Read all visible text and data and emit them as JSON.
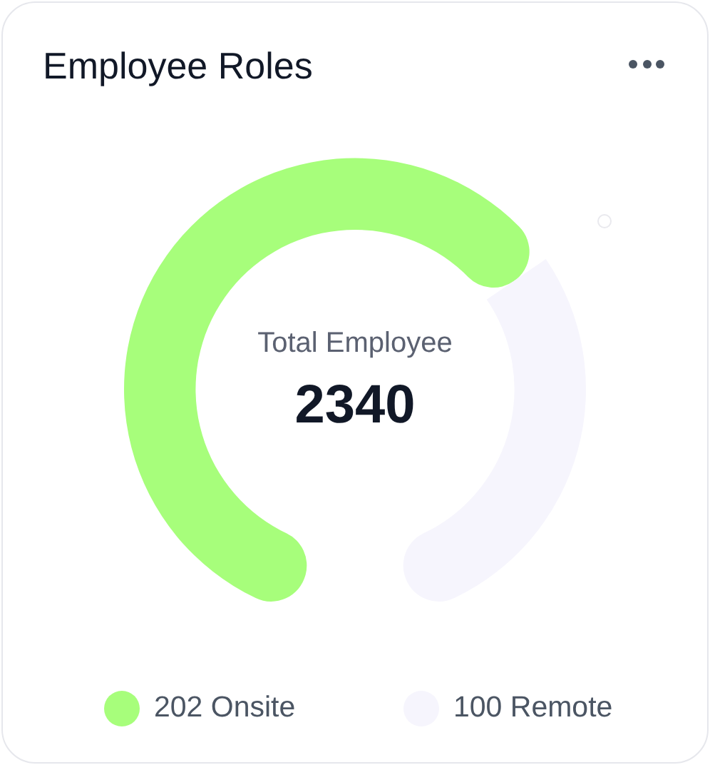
{
  "chart_data": {
    "type": "donut",
    "title": "Employee Roles",
    "categories": [
      "202 Onsite",
      "100 Remote"
    ],
    "values": [
      202,
      100
    ],
    "colors": [
      "#a7fe7b",
      "#f6f5fd"
    ],
    "annotations": [
      "Total Employee",
      "2340"
    ],
    "legend": "bottom"
  }
}
